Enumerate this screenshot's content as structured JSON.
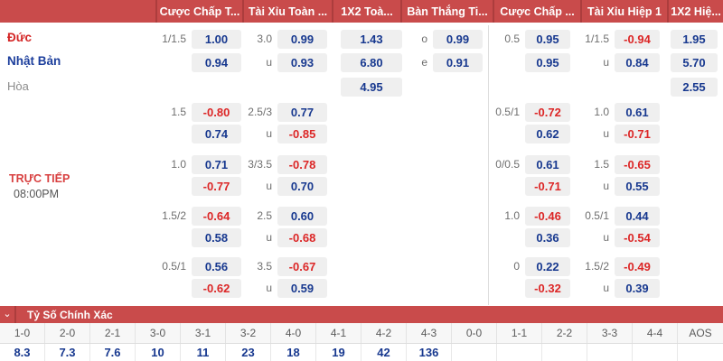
{
  "header": {
    "segments": [
      {
        "id": "match-info",
        "label": ""
      },
      {
        "id": "hdp-ft",
        "label": "Cược Chấp T..."
      },
      {
        "id": "ou-ft",
        "label": "Tài Xỉu Toàn ..."
      },
      {
        "id": "x12-ft",
        "label": "1X2 Toà..."
      },
      {
        "id": "oe-ft",
        "label": "Bàn Thắng Ti..."
      },
      {
        "id": "hdp-h1",
        "label": "Cược Chấp ..."
      },
      {
        "id": "ou-h1",
        "label": "Tài Xỉu Hiệp 1"
      },
      {
        "id": "x12-h1",
        "label": "1X2 Hiệ..."
      }
    ]
  },
  "match": {
    "home": "Đức",
    "away": "Nhật Bản",
    "draw": "Hòa",
    "status": "TRỰC TIẾP",
    "time": "08:00PM"
  },
  "odds_rows": [
    {
      "cells": [
        {
          "m": "hdp_ft",
          "label": "1/1.5",
          "value": "1.00"
        },
        {
          "m": "ou_ft",
          "label": "3.0",
          "value": "0.99"
        },
        {
          "m": "x12_ft",
          "label": "",
          "value": "1.43"
        },
        {
          "m": "bt_ft",
          "label": "o",
          "value": "0.99"
        },
        {
          "m": "hdp_h1",
          "label": "0.5",
          "value": "0.95"
        },
        {
          "m": "ou_h1",
          "label": "1/1.5",
          "value": "-0.94"
        },
        {
          "m": "x12_h1",
          "label": "",
          "value": "1.95"
        }
      ]
    },
    {
      "cells": [
        {
          "m": "hdp_ft",
          "label": "",
          "value": "0.94"
        },
        {
          "m": "ou_ft",
          "label": "u",
          "value": "0.93"
        },
        {
          "m": "x12_ft",
          "label": "",
          "value": "6.80"
        },
        {
          "m": "bt_ft",
          "label": "e",
          "value": "0.91"
        },
        {
          "m": "hdp_h1",
          "label": "",
          "value": "0.95"
        },
        {
          "m": "ou_h1",
          "label": "u",
          "value": "0.84"
        },
        {
          "m": "x12_h1",
          "label": "",
          "value": "5.70"
        }
      ]
    },
    {
      "cells": [
        {
          "m": "x12_ft",
          "label": "",
          "value": "4.95"
        },
        {
          "m": "x12_h1",
          "label": "",
          "value": "2.55"
        }
      ]
    },
    {
      "cells": [
        {
          "m": "hdp_ft",
          "label": "1.5",
          "value": "-0.80"
        },
        {
          "m": "ou_ft",
          "label": "2.5/3",
          "value": "0.77"
        },
        {
          "m": "hdp_h1",
          "label": "0.5/1",
          "value": "-0.72"
        },
        {
          "m": "ou_h1",
          "label": "1.0",
          "value": "0.61"
        }
      ]
    },
    {
      "cells": [
        {
          "m": "hdp_ft",
          "label": "",
          "value": "0.74"
        },
        {
          "m": "ou_ft",
          "label": "u",
          "value": "-0.85"
        },
        {
          "m": "hdp_h1",
          "label": "",
          "value": "0.62"
        },
        {
          "m": "ou_h1",
          "label": "u",
          "value": "-0.71"
        }
      ]
    },
    {
      "cells": [
        {
          "m": "hdp_ft",
          "label": "1.0",
          "value": "0.71"
        },
        {
          "m": "ou_ft",
          "label": "3/3.5",
          "value": "-0.78"
        },
        {
          "m": "hdp_h1",
          "label": "0/0.5",
          "value": "0.61"
        },
        {
          "m": "ou_h1",
          "label": "1.5",
          "value": "-0.65"
        }
      ]
    },
    {
      "cells": [
        {
          "m": "hdp_ft",
          "label": "",
          "value": "-0.77"
        },
        {
          "m": "ou_ft",
          "label": "u",
          "value": "0.70"
        },
        {
          "m": "hdp_h1",
          "label": "",
          "value": "-0.71"
        },
        {
          "m": "ou_h1",
          "label": "u",
          "value": "0.55"
        }
      ]
    },
    {
      "cells": [
        {
          "m": "hdp_ft",
          "label": "1.5/2",
          "value": "-0.64"
        },
        {
          "m": "ou_ft",
          "label": "2.5",
          "value": "0.60"
        },
        {
          "m": "hdp_h1",
          "label": "1.0",
          "value": "-0.46"
        },
        {
          "m": "ou_h1",
          "label": "0.5/1",
          "value": "0.44"
        }
      ]
    },
    {
      "cells": [
        {
          "m": "hdp_ft",
          "label": "",
          "value": "0.58"
        },
        {
          "m": "ou_ft",
          "label": "u",
          "value": "-0.68"
        },
        {
          "m": "hdp_h1",
          "label": "",
          "value": "0.36"
        },
        {
          "m": "ou_h1",
          "label": "u",
          "value": "-0.54"
        }
      ]
    },
    {
      "cells": [
        {
          "m": "hdp_ft",
          "label": "0.5/1",
          "value": "0.56"
        },
        {
          "m": "ou_ft",
          "label": "3.5",
          "value": "-0.67"
        },
        {
          "m": "hdp_h1",
          "label": "0",
          "value": "0.22"
        },
        {
          "m": "ou_h1",
          "label": "1.5/2",
          "value": "-0.49"
        }
      ]
    },
    {
      "cells": [
        {
          "m": "hdp_ft",
          "label": "",
          "value": "-0.62"
        },
        {
          "m": "ou_ft",
          "label": "u",
          "value": "0.59"
        },
        {
          "m": "hdp_h1",
          "label": "",
          "value": "-0.32"
        },
        {
          "m": "ou_h1",
          "label": "u",
          "value": "0.39"
        }
      ]
    }
  ],
  "correct_score": {
    "title": "Tỷ Số Chính Xác",
    "chevron_icon": "⌄",
    "columns": [
      {
        "score": "1-0",
        "value": "8.3"
      },
      {
        "score": "2-0",
        "value": "7.3"
      },
      {
        "score": "2-1",
        "value": "7.6"
      },
      {
        "score": "3-0",
        "value": "10"
      },
      {
        "score": "3-1",
        "value": "11"
      },
      {
        "score": "3-2",
        "value": "23"
      },
      {
        "score": "4-0",
        "value": "18"
      },
      {
        "score": "4-1",
        "value": "19"
      },
      {
        "score": "4-2",
        "value": "42"
      },
      {
        "score": "4-3",
        "value": "136"
      },
      {
        "score": "0-0",
        "value": ""
      },
      {
        "score": "1-1",
        "value": ""
      },
      {
        "score": "2-2",
        "value": ""
      },
      {
        "score": "3-3",
        "value": ""
      },
      {
        "score": "4-4",
        "value": ""
      },
      {
        "score": "AOS",
        "value": ""
      }
    ]
  },
  "colors": {
    "header_red": "#c94b4b",
    "header_divider_red": "#ac3d3d",
    "positive_odds_blue": "#17388f",
    "negative_odds_red": "#dc2626",
    "home_team_red": "#d42525",
    "away_team_blue": "#1c3e9c",
    "cell_background": "#efefef"
  }
}
